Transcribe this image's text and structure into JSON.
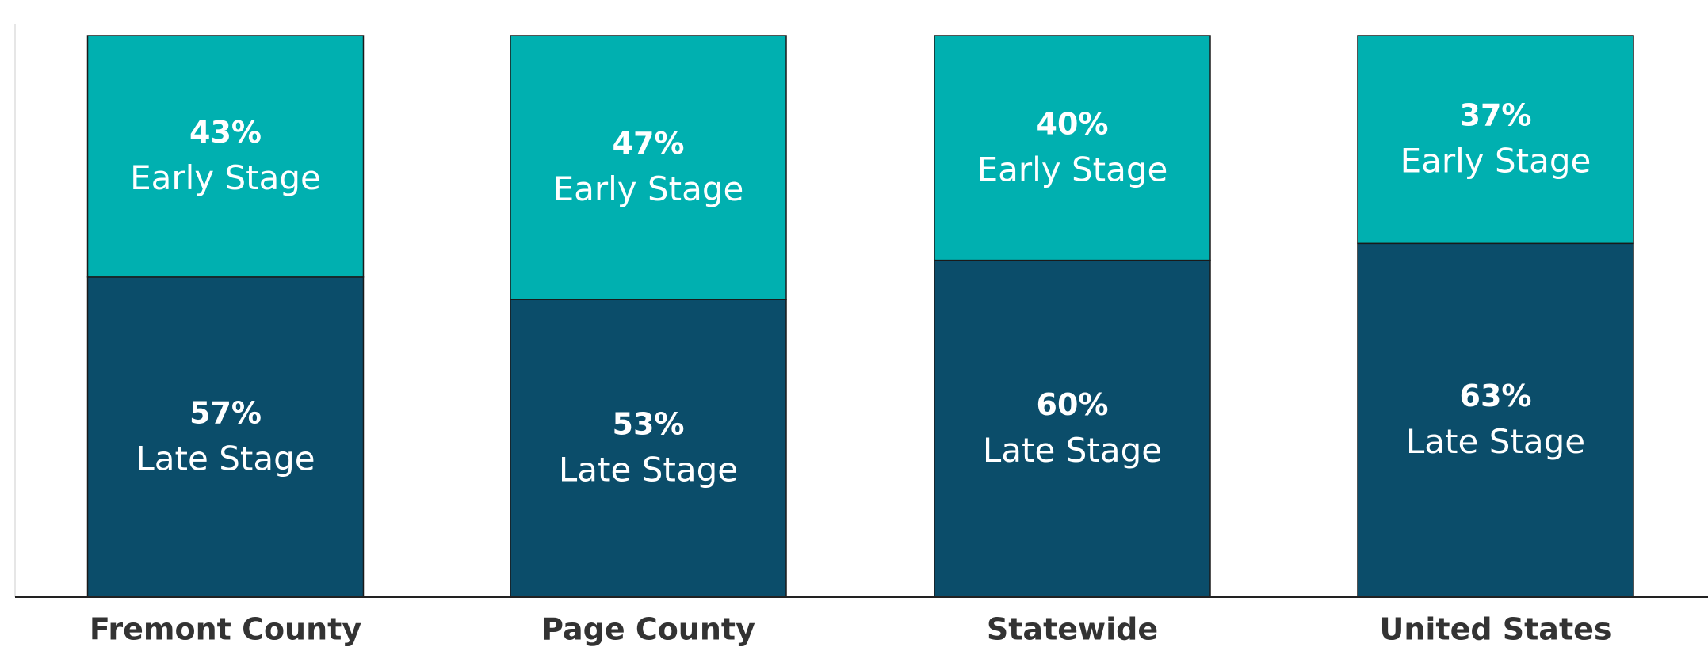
{
  "chart_data": {
    "type": "stacked_bar",
    "categories": [
      "Fremont County",
      "Page County",
      "Statewide",
      "United States"
    ],
    "series": [
      {
        "name": "Late Stage",
        "color": "#0b4d6a",
        "values": [
          57,
          53,
          60,
          63
        ],
        "value_labels": [
          "57%",
          "53%",
          "60%",
          "63%"
        ]
      },
      {
        "name": "Early Stage",
        "color": "#00b0b0",
        "values": [
          43,
          47,
          40,
          37
        ],
        "value_labels": [
          "43%",
          "47%",
          "40%",
          "37%"
        ]
      }
    ],
    "ylim": [
      0,
      100
    ]
  }
}
